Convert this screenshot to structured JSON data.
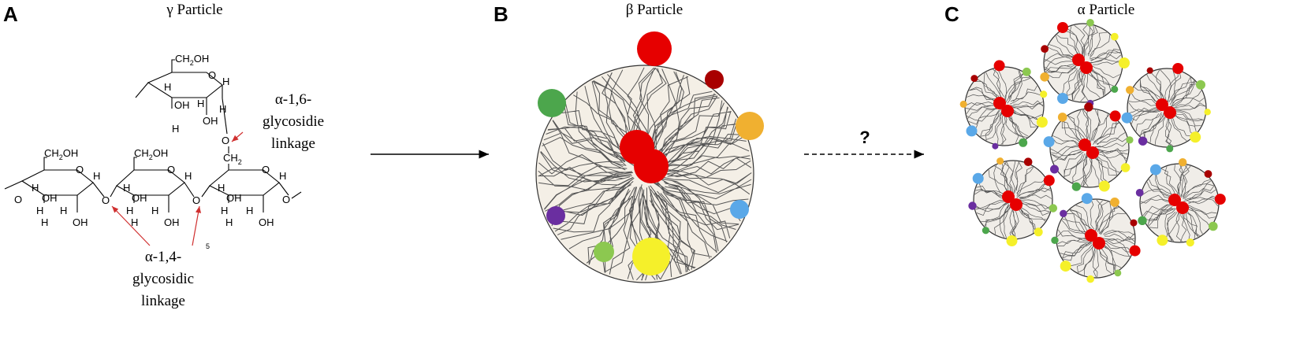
{
  "panels": {
    "a": {
      "letter": "A",
      "title": "γ Particle"
    },
    "b": {
      "letter": "B",
      "title": "β Particle"
    },
    "c": {
      "letter": "C",
      "title": "α Particle"
    }
  },
  "linkages": {
    "alpha16": [
      "α-1,6-",
      "glycosidie",
      "linkage"
    ],
    "alpha14": [
      "α-1,4-",
      "glycosidic",
      "linkage"
    ]
  },
  "chem_labels": {
    "ch2oh": "CH",
    "ch2oh_sub": "2",
    "ch2oh_tail": "OH",
    "ch2": "CH",
    "ch2_sub": "2",
    "oh": "OH",
    "h": "H",
    "o": "O",
    "stray": "5"
  },
  "arrow_unknown": "?",
  "colors": {
    "red": "#e60000",
    "dark_red": "#a80000",
    "green": "#4ca64c",
    "orange": "#f0b030",
    "purple": "#6a2ea0",
    "light_blue": "#5aa8e8",
    "light_green": "#8cc850",
    "yellow": "#f5f02a",
    "branch": "#555555",
    "pointer": "#d03030"
  }
}
